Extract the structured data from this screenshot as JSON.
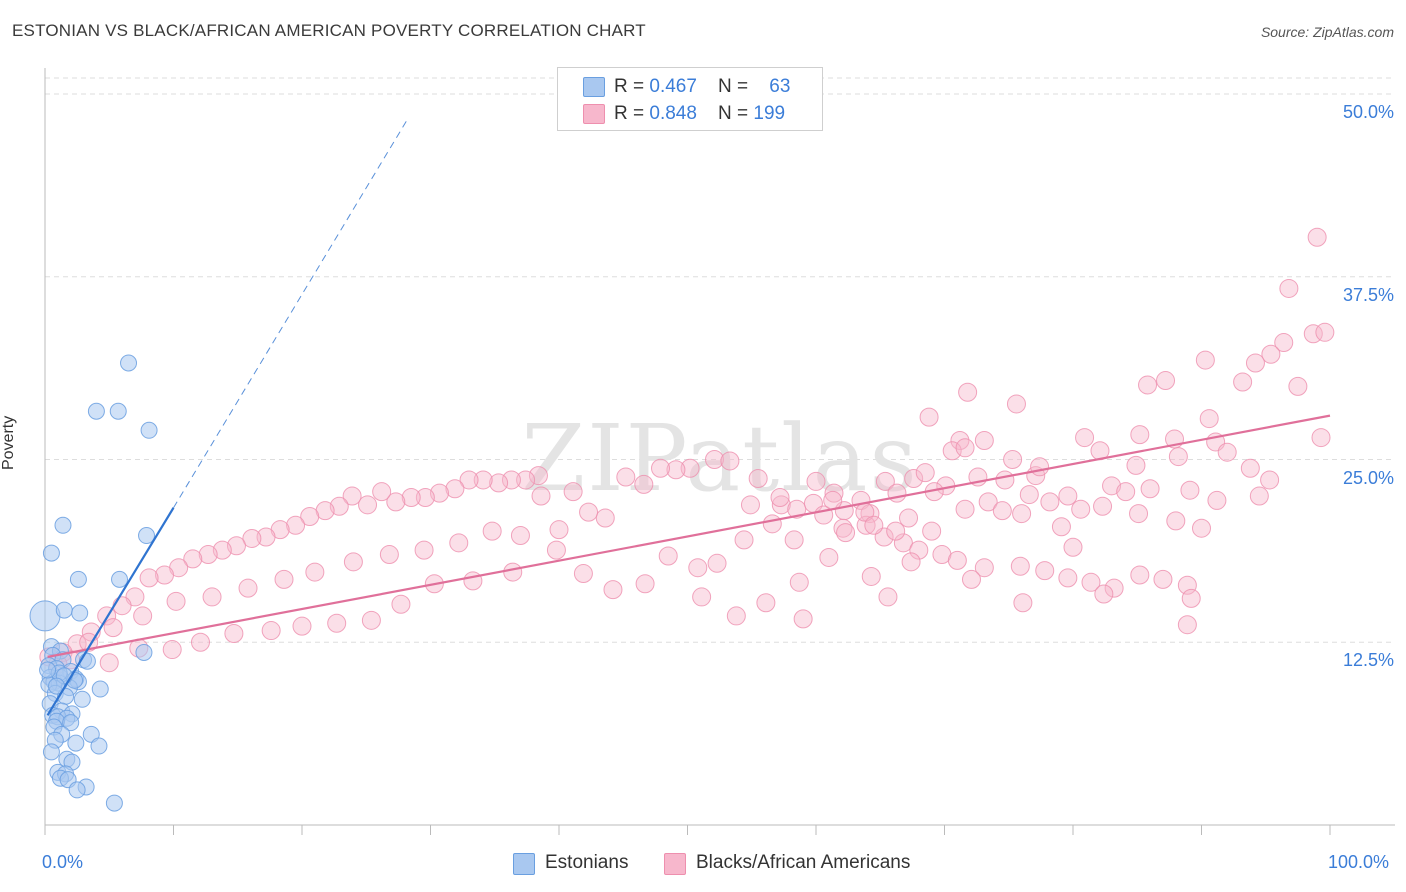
{
  "header": {
    "title": "ESTONIAN VS BLACK/AFRICAN AMERICAN POVERTY CORRELATION CHART",
    "source": "Source: ZipAtlas.com"
  },
  "watermark": "ZIPatlas",
  "legend": {
    "rows": [
      {
        "r_label": "R = ",
        "r_value": "0.467",
        "n_label": "N = ",
        "n_value": "63"
      },
      {
        "r_label": "R = ",
        "r_value": "0.848",
        "n_label": "N = ",
        "n_value": "199"
      }
    ]
  },
  "bottom_legend": [
    "Estonians",
    "Blacks/African Americans"
  ],
  "colors": {
    "estonian_fill": "#a9c8f0",
    "estonian_stroke": "#6a9fe0",
    "estonian_line": "#2f74d0",
    "black_fill": "#f7b7cc",
    "black_stroke": "#ee8fae",
    "black_line": "#e0709a",
    "grid": "#dddddd",
    "axis": "#bbbbbb",
    "tick_label": "#3b7dd8"
  },
  "chart_data": {
    "type": "scatter",
    "title": "ESTONIAN VS BLACK/AFRICAN AMERICAN POVERTY CORRELATION CHART",
    "xlabel": "",
    "ylabel": "Poverty",
    "xlim": [
      0,
      100
    ],
    "ylim": [
      0,
      50
    ],
    "x_tick_labels": [
      "0.0%",
      "100.0%"
    ],
    "y_ticks": [
      12.5,
      25.0,
      37.5,
      50.0
    ],
    "y_tick_labels": [
      "12.5%",
      "25.0%",
      "37.5%",
      "50.0%"
    ],
    "grid": true,
    "legend_position": "top-center",
    "series": [
      {
        "name": "Estonians",
        "R": 0.467,
        "N": 63,
        "trend": {
          "x": [
            0.2,
            10.0
          ],
          "y": [
            7.5,
            21.7
          ],
          "dashed_extension": {
            "x": [
              10.0,
              28.3
            ],
            "y": [
              21.7,
              48.4
            ]
          }
        },
        "points": [
          [
            6.5,
            31.6
          ],
          [
            4.0,
            28.3
          ],
          [
            5.7,
            28.3
          ],
          [
            8.1,
            27.0
          ],
          [
            1.4,
            20.5
          ],
          [
            7.9,
            19.8
          ],
          [
            0.5,
            18.6
          ],
          [
            2.6,
            16.8
          ],
          [
            5.8,
            16.8
          ],
          [
            0.0,
            14.3
          ],
          [
            1.5,
            14.7
          ],
          [
            2.7,
            14.5
          ],
          [
            0.5,
            12.2
          ],
          [
            1.2,
            11.9
          ],
          [
            7.7,
            11.8
          ],
          [
            0.6,
            11.6
          ],
          [
            1.4,
            11.3
          ],
          [
            3.0,
            11.3
          ],
          [
            3.3,
            11.2
          ],
          [
            0.3,
            10.9
          ],
          [
            0.9,
            10.7
          ],
          [
            2.0,
            10.5
          ],
          [
            0.4,
            10.1
          ],
          [
            1.2,
            10.1
          ],
          [
            2.4,
            10.0
          ],
          [
            0.7,
            9.8
          ],
          [
            1.1,
            9.7
          ],
          [
            2.6,
            9.8
          ],
          [
            0.3,
            9.6
          ],
          [
            1.9,
            9.4
          ],
          [
            4.3,
            9.3
          ],
          [
            0.8,
            9.0
          ],
          [
            1.6,
            8.8
          ],
          [
            2.9,
            8.6
          ],
          [
            0.4,
            8.3
          ],
          [
            1.3,
            7.8
          ],
          [
            2.1,
            7.6
          ],
          [
            0.6,
            7.5
          ],
          [
            1.0,
            7.4
          ],
          [
            1.7,
            7.3
          ],
          [
            0.9,
            7.1
          ],
          [
            2.0,
            7.0
          ],
          [
            0.7,
            6.7
          ],
          [
            1.3,
            6.2
          ],
          [
            3.6,
            6.2
          ],
          [
            0.8,
            5.8
          ],
          [
            2.4,
            5.6
          ],
          [
            4.2,
            5.4
          ],
          [
            0.5,
            5.0
          ],
          [
            1.7,
            4.5
          ],
          [
            2.1,
            4.3
          ],
          [
            1.0,
            3.6
          ],
          [
            1.6,
            3.5
          ],
          [
            1.2,
            3.2
          ],
          [
            1.8,
            3.1
          ],
          [
            3.2,
            2.6
          ],
          [
            2.5,
            2.4
          ],
          [
            5.4,
            1.5
          ],
          [
            1.1,
            10.4
          ],
          [
            0.2,
            10.6
          ],
          [
            2.3,
            9.9
          ],
          [
            1.5,
            10.2
          ],
          [
            0.9,
            9.5
          ]
        ]
      },
      {
        "name": "Blacks/African Americans",
        "R": 0.848,
        "N": 199,
        "trend": {
          "x": [
            0.2,
            100.0
          ],
          "y": [
            11.5,
            28.0
          ]
        },
        "points": [
          [
            98.7,
            33.6
          ],
          [
            99.6,
            33.7
          ],
          [
            96.4,
            33.0
          ],
          [
            95.4,
            32.2
          ],
          [
            94.2,
            31.6
          ],
          [
            90.3,
            31.8
          ],
          [
            93.2,
            30.3
          ],
          [
            97.5,
            30.0
          ],
          [
            71.8,
            29.6
          ],
          [
            87.2,
            30.4
          ],
          [
            75.6,
            28.8
          ],
          [
            85.8,
            30.1
          ],
          [
            68.8,
            27.9
          ],
          [
            90.6,
            27.8
          ],
          [
            99.3,
            26.5
          ],
          [
            71.2,
            26.3
          ],
          [
            73.1,
            26.3
          ],
          [
            85.2,
            26.7
          ],
          [
            87.9,
            26.4
          ],
          [
            91.1,
            26.2
          ],
          [
            92.0,
            25.5
          ],
          [
            77.1,
            23.9
          ],
          [
            77.4,
            24.5
          ],
          [
            75.3,
            25.0
          ],
          [
            70.6,
            25.6
          ],
          [
            71.6,
            25.8
          ],
          [
            80.9,
            26.5
          ],
          [
            82.1,
            25.6
          ],
          [
            84.9,
            24.6
          ],
          [
            88.2,
            25.2
          ],
          [
            93.8,
            24.4
          ],
          [
            65.4,
            23.5
          ],
          [
            67.6,
            23.7
          ],
          [
            68.5,
            24.1
          ],
          [
            70.1,
            23.2
          ],
          [
            73.4,
            22.1
          ],
          [
            74.7,
            23.6
          ],
          [
            76.6,
            22.6
          ],
          [
            78.2,
            22.1
          ],
          [
            79.6,
            22.5
          ],
          [
            80.6,
            21.6
          ],
          [
            83.0,
            23.2
          ],
          [
            84.1,
            22.8
          ],
          [
            86.0,
            23.0
          ],
          [
            89.1,
            22.9
          ],
          [
            91.2,
            22.2
          ],
          [
            94.5,
            22.5
          ],
          [
            95.3,
            23.6
          ],
          [
            60.0,
            23.5
          ],
          [
            61.4,
            22.7
          ],
          [
            62.2,
            21.5
          ],
          [
            63.5,
            22.2
          ],
          [
            64.2,
            21.3
          ],
          [
            66.3,
            22.7
          ],
          [
            67.2,
            21.0
          ],
          [
            69.2,
            22.8
          ],
          [
            71.6,
            21.6
          ],
          [
            72.6,
            23.8
          ],
          [
            74.5,
            21.5
          ],
          [
            76.0,
            21.3
          ],
          [
            79.1,
            20.4
          ],
          [
            82.3,
            21.8
          ],
          [
            85.1,
            21.3
          ],
          [
            88.0,
            20.8
          ],
          [
            90.0,
            20.3
          ],
          [
            57.3,
            21.9
          ],
          [
            58.5,
            21.6
          ],
          [
            59.8,
            22.0
          ],
          [
            60.6,
            21.2
          ],
          [
            61.3,
            22.2
          ],
          [
            62.1,
            20.3
          ],
          [
            63.9,
            20.5
          ],
          [
            65.3,
            19.7
          ],
          [
            66.8,
            19.3
          ],
          [
            68.0,
            18.8
          ],
          [
            69.8,
            18.5
          ],
          [
            71.0,
            18.1
          ],
          [
            73.1,
            17.6
          ],
          [
            75.9,
            17.7
          ],
          [
            77.8,
            17.4
          ],
          [
            79.6,
            16.9
          ],
          [
            81.4,
            16.6
          ],
          [
            83.2,
            16.2
          ],
          [
            85.2,
            17.1
          ],
          [
            87.0,
            16.8
          ],
          [
            88.9,
            16.4
          ],
          [
            62.3,
            20.0
          ],
          [
            63.8,
            21.4
          ],
          [
            64.5,
            20.5
          ],
          [
            66.2,
            20.1
          ],
          [
            55.5,
            23.7
          ],
          [
            57.2,
            22.4
          ],
          [
            54.9,
            21.9
          ],
          [
            52.1,
            25.0
          ],
          [
            53.3,
            24.9
          ],
          [
            50.2,
            24.4
          ],
          [
            49.1,
            24.3
          ],
          [
            47.9,
            24.4
          ],
          [
            46.6,
            23.3
          ],
          [
            45.2,
            23.8
          ],
          [
            41.1,
            22.8
          ],
          [
            38.6,
            22.5
          ],
          [
            38.4,
            23.9
          ],
          [
            37.4,
            23.6
          ],
          [
            36.3,
            23.6
          ],
          [
            35.3,
            23.4
          ],
          [
            34.1,
            23.6
          ],
          [
            33.0,
            23.6
          ],
          [
            31.9,
            23.0
          ],
          [
            30.7,
            22.7
          ],
          [
            29.6,
            22.4
          ],
          [
            28.5,
            22.4
          ],
          [
            27.3,
            22.1
          ],
          [
            26.2,
            22.8
          ],
          [
            25.1,
            21.9
          ],
          [
            23.9,
            22.5
          ],
          [
            22.9,
            21.8
          ],
          [
            21.8,
            21.5
          ],
          [
            20.6,
            21.1
          ],
          [
            19.5,
            20.5
          ],
          [
            18.3,
            20.2
          ],
          [
            17.2,
            19.7
          ],
          [
            16.1,
            19.6
          ],
          [
            14.9,
            19.1
          ],
          [
            13.8,
            18.8
          ],
          [
            12.7,
            18.5
          ],
          [
            11.5,
            18.2
          ],
          [
            10.4,
            17.6
          ],
          [
            9.3,
            17.1
          ],
          [
            8.1,
            16.9
          ],
          [
            7.0,
            15.6
          ],
          [
            6.0,
            15.0
          ],
          [
            4.8,
            14.3
          ],
          [
            3.6,
            13.2
          ],
          [
            2.5,
            12.4
          ],
          [
            1.4,
            11.8
          ],
          [
            0.3,
            11.5
          ],
          [
            43.6,
            21.0
          ],
          [
            42.3,
            21.4
          ],
          [
            40.0,
            20.2
          ],
          [
            37.0,
            19.8
          ],
          [
            34.8,
            20.1
          ],
          [
            32.2,
            19.3
          ],
          [
            29.5,
            18.8
          ],
          [
            26.8,
            18.5
          ],
          [
            24.0,
            18.0
          ],
          [
            21.0,
            17.3
          ],
          [
            18.6,
            16.8
          ],
          [
            15.8,
            16.2
          ],
          [
            13.0,
            15.6
          ],
          [
            10.2,
            15.3
          ],
          [
            7.6,
            14.3
          ],
          [
            5.3,
            13.5
          ],
          [
            3.4,
            12.5
          ],
          [
            2.0,
            11.3
          ],
          [
            1.0,
            11.0
          ],
          [
            48.5,
            18.4
          ],
          [
            50.8,
            17.6
          ],
          [
            52.3,
            17.9
          ],
          [
            58.3,
            19.5
          ],
          [
            56.6,
            20.6
          ],
          [
            54.4,
            19.5
          ],
          [
            61.0,
            18.3
          ],
          [
            64.3,
            17.0
          ],
          [
            67.4,
            18.0
          ],
          [
            58.7,
            16.6
          ],
          [
            56.1,
            15.2
          ],
          [
            53.8,
            14.3
          ],
          [
            51.1,
            15.6
          ],
          [
            46.7,
            16.5
          ],
          [
            44.2,
            16.1
          ],
          [
            41.9,
            17.2
          ],
          [
            39.8,
            18.8
          ],
          [
            36.4,
            17.3
          ],
          [
            33.3,
            16.7
          ],
          [
            30.3,
            16.5
          ],
          [
            27.7,
            15.1
          ],
          [
            25.4,
            14.0
          ],
          [
            22.7,
            13.8
          ],
          [
            20.0,
            13.6
          ],
          [
            17.6,
            13.3
          ],
          [
            14.7,
            13.1
          ],
          [
            12.1,
            12.5
          ],
          [
            9.9,
            12.0
          ],
          [
            7.3,
            12.1
          ],
          [
            5.0,
            11.1
          ],
          [
            89.2,
            15.5
          ],
          [
            88.9,
            13.7
          ],
          [
            82.4,
            15.8
          ],
          [
            76.1,
            15.2
          ],
          [
            72.1,
            16.8
          ],
          [
            65.6,
            15.6
          ],
          [
            59.0,
            14.1
          ],
          [
            99.0,
            40.2
          ],
          [
            96.8,
            36.7
          ],
          [
            69.0,
            20.1
          ],
          [
            80.0,
            19.0
          ]
        ]
      }
    ]
  }
}
